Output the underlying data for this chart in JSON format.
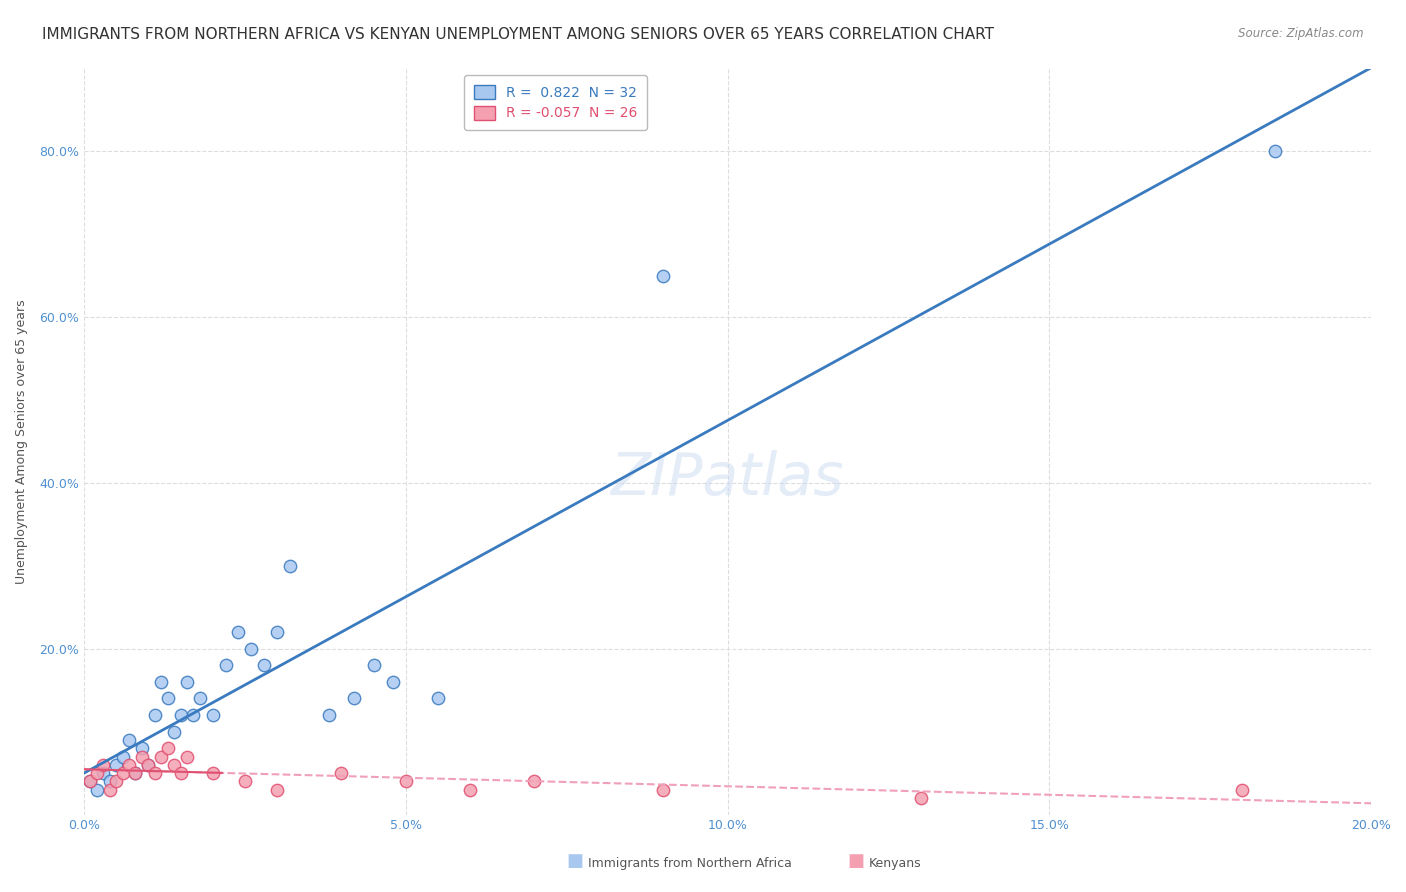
{
  "title": "IMMIGRANTS FROM NORTHERN AFRICA VS KENYAN UNEMPLOYMENT AMONG SENIORS OVER 65 YEARS CORRELATION CHART",
  "source": "Source: ZipAtlas.com",
  "ylabel": "Unemployment Among Seniors over 65 years",
  "xlabel_blue": "Immigrants from Northern Africa",
  "xlabel_pink": "Kenyans",
  "watermark": "ZIPatlas",
  "legend_blue_r": "0.822",
  "legend_blue_n": "32",
  "legend_pink_r": "-0.057",
  "legend_pink_n": "26",
  "blue_color": "#a8c8f0",
  "blue_line_color": "#3a7abf",
  "pink_color": "#f4a0b0",
  "pink_line_color": "#e05070",
  "pink_dashed_color": "#f0a0b8",
  "xlim": [
    0.0,
    0.2
  ],
  "ylim": [
    0.0,
    0.9
  ],
  "xticks": [
    0.0,
    0.05,
    0.1,
    0.15,
    0.2
  ],
  "xtick_labels": [
    "0.0%",
    "5.0%",
    "10.0%",
    "15.0%",
    "20.0%"
  ],
  "yticks": [
    0.0,
    0.2,
    0.4,
    0.6,
    0.8
  ],
  "ytick_labels": [
    "",
    "20.0%",
    "40.0%",
    "60.0%",
    "80.0%"
  ],
  "grid_color": "#dddddd",
  "bg_color": "#ffffff",
  "title_fontsize": 11,
  "axis_label_fontsize": 9,
  "tick_fontsize": 9,
  "watermark_fontsize": 42,
  "watermark_color": "#c8daf0",
  "watermark_alpha": 0.5,
  "blue_x": [
    0.001,
    0.002,
    0.003,
    0.004,
    0.005,
    0.006,
    0.007,
    0.008,
    0.009,
    0.01,
    0.011,
    0.012,
    0.013,
    0.014,
    0.015,
    0.016,
    0.017,
    0.018,
    0.02,
    0.022,
    0.024,
    0.026,
    0.028,
    0.03,
    0.032,
    0.038,
    0.042,
    0.045,
    0.048,
    0.055,
    0.09,
    0.185
  ],
  "blue_y": [
    0.04,
    0.03,
    0.05,
    0.04,
    0.06,
    0.07,
    0.09,
    0.05,
    0.08,
    0.06,
    0.12,
    0.16,
    0.14,
    0.1,
    0.12,
    0.16,
    0.12,
    0.14,
    0.12,
    0.18,
    0.22,
    0.2,
    0.18,
    0.22,
    0.3,
    0.12,
    0.14,
    0.18,
    0.16,
    0.14,
    0.65,
    0.8
  ],
  "pink_x": [
    0.001,
    0.002,
    0.003,
    0.004,
    0.005,
    0.006,
    0.007,
    0.008,
    0.009,
    0.01,
    0.011,
    0.012,
    0.013,
    0.014,
    0.015,
    0.016,
    0.02,
    0.025,
    0.03,
    0.04,
    0.05,
    0.06,
    0.07,
    0.09,
    0.13,
    0.18
  ],
  "pink_y": [
    0.04,
    0.05,
    0.06,
    0.03,
    0.04,
    0.05,
    0.06,
    0.05,
    0.07,
    0.06,
    0.05,
    0.07,
    0.08,
    0.06,
    0.05,
    0.07,
    0.05,
    0.04,
    0.03,
    0.05,
    0.04,
    0.03,
    0.04,
    0.03,
    0.02,
    0.03
  ]
}
